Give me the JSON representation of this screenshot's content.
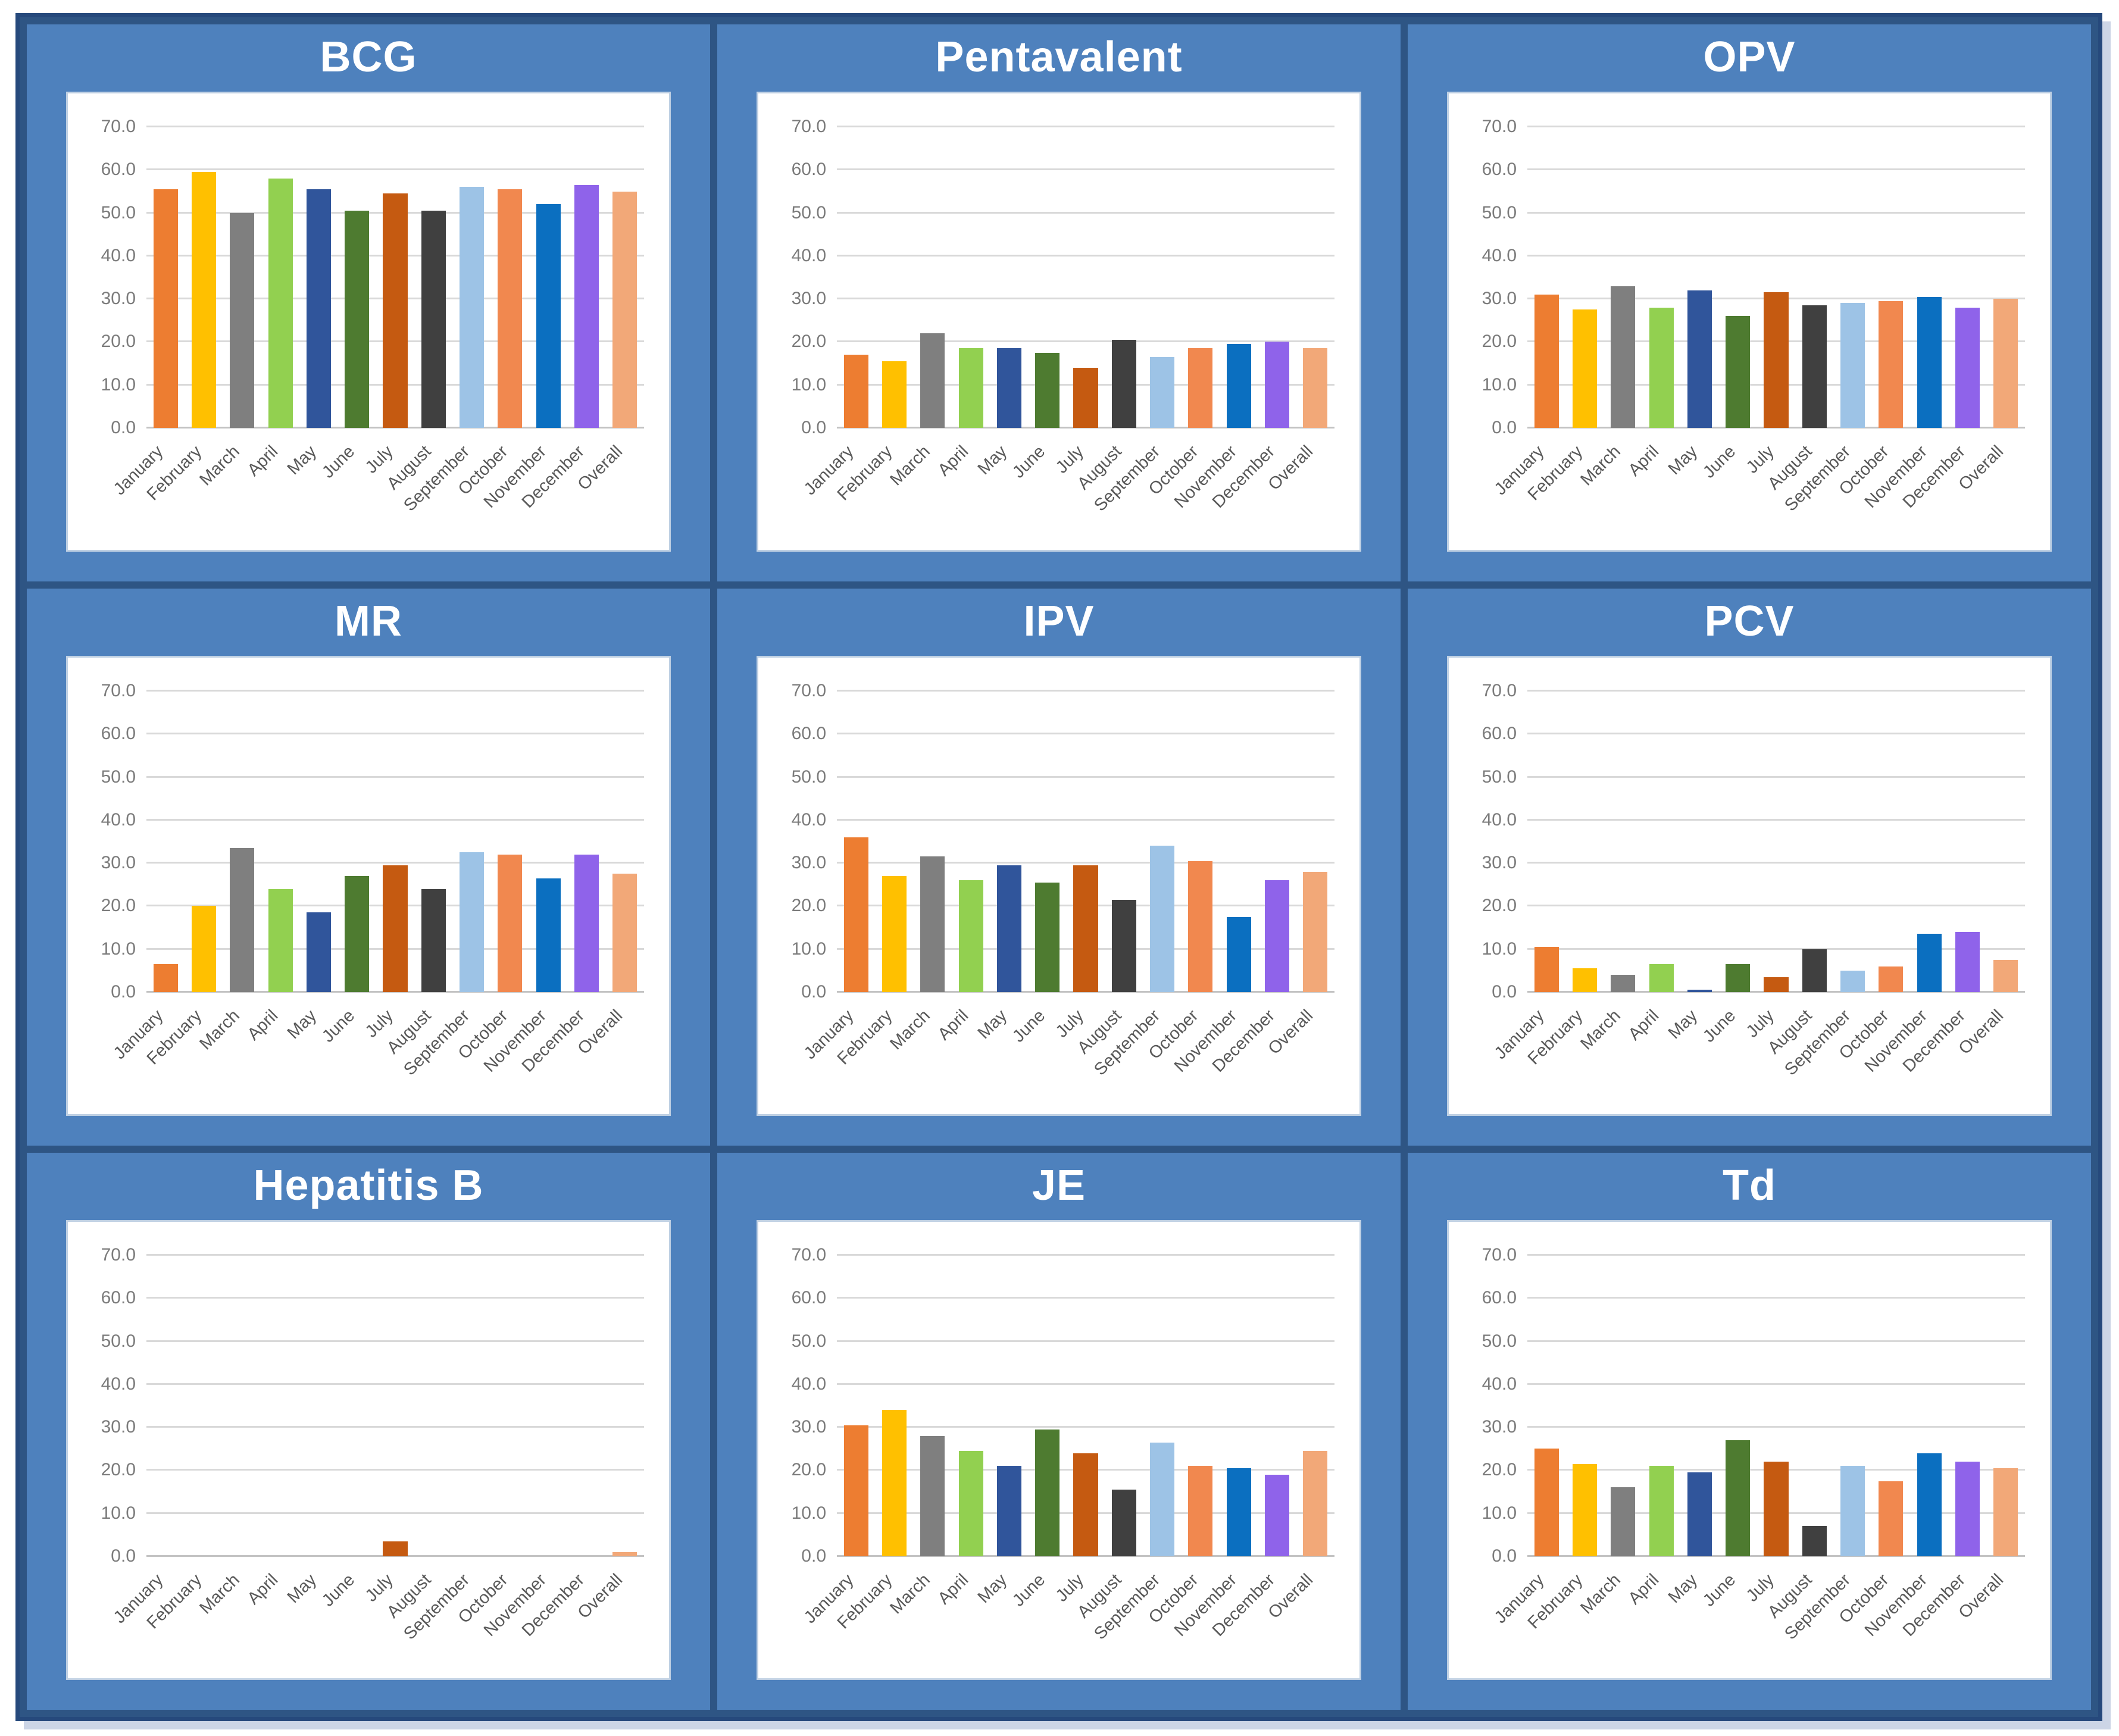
{
  "style": {
    "panel_blue": "#4e81bd",
    "frame_blue": "#2e5584",
    "frame_border": "#26497c",
    "card_border": "#bfd0e3",
    "gridline_color": "#d9d9d9",
    "axis_line_color": "#c3c3c3",
    "ytick_color": "#7b7b7b",
    "month_label_color": "#595959",
    "title_color": "#ffffff",
    "ytick_step": 10,
    "ytick_labels": [
      "0.0",
      "10.0",
      "20.0",
      "30.0",
      "40.0",
      "50.0",
      "60.0",
      "70.0"
    ],
    "bar_colors": [
      "#ED7D31",
      "#FFC000",
      "#7F7F7F",
      "#92D050",
      "#30559B",
      "#4E7B30",
      "#C55A11",
      "#404040",
      "#9DC3E6",
      "#F1884F",
      "#0B6FC0",
      "#8F63EA",
      "#F2A878"
    ]
  },
  "chart_data": [
    {
      "type": "bar",
      "title": "BCG",
      "ylim": [
        0,
        70
      ],
      "grid": true,
      "legend": "none",
      "categories": [
        "January",
        "February",
        "March",
        "April",
        "May",
        "June",
        "July",
        "August",
        "September",
        "October",
        "November",
        "December",
        "Overall"
      ],
      "values": [
        55.5,
        59.5,
        50.0,
        58.0,
        55.5,
        50.5,
        54.5,
        50.5,
        56.0,
        55.5,
        52.0,
        56.5,
        55.0
      ]
    },
    {
      "type": "bar",
      "title": "Pentavalent",
      "ylim": [
        0,
        70
      ],
      "grid": true,
      "legend": "none",
      "categories": [
        "January",
        "February",
        "March",
        "April",
        "May",
        "June",
        "July",
        "August",
        "September",
        "October",
        "November",
        "December",
        "Overall"
      ],
      "values": [
        17.0,
        15.5,
        22.0,
        18.5,
        18.5,
        17.5,
        14.0,
        20.5,
        16.5,
        18.5,
        19.5,
        20.0,
        18.5
      ]
    },
    {
      "type": "bar",
      "title": "OPV",
      "ylim": [
        0,
        70
      ],
      "grid": true,
      "legend": "none",
      "categories": [
        "January",
        "February",
        "March",
        "April",
        "May",
        "June",
        "July",
        "August",
        "September",
        "October",
        "November",
        "December",
        "Overall"
      ],
      "values": [
        31.0,
        27.5,
        33.0,
        28.0,
        32.0,
        26.0,
        31.5,
        28.5,
        29.0,
        29.5,
        30.5,
        28.0,
        30.0
      ]
    },
    {
      "type": "bar",
      "title": "MR",
      "ylim": [
        0,
        70
      ],
      "grid": true,
      "legend": "none",
      "categories": [
        "January",
        "February",
        "March",
        "April",
        "May",
        "June",
        "July",
        "August",
        "September",
        "October",
        "November",
        "December",
        "Overall"
      ],
      "values": [
        6.5,
        20.0,
        33.5,
        24.0,
        18.5,
        27.0,
        29.5,
        24.0,
        32.5,
        32.0,
        26.5,
        32.0,
        27.5
      ]
    },
    {
      "type": "bar",
      "title": "IPV",
      "ylim": [
        0,
        70
      ],
      "grid": true,
      "legend": "none",
      "categories": [
        "January",
        "February",
        "March",
        "April",
        "May",
        "June",
        "July",
        "August",
        "September",
        "October",
        "November",
        "December",
        "Overall"
      ],
      "values": [
        36.0,
        27.0,
        31.5,
        26.0,
        29.5,
        25.5,
        29.5,
        21.5,
        34.0,
        30.5,
        17.5,
        26.0,
        28.0
      ]
    },
    {
      "type": "bar",
      "title": "PCV",
      "ylim": [
        0,
        70
      ],
      "grid": true,
      "legend": "none",
      "categories": [
        "January",
        "February",
        "March",
        "April",
        "May",
        "June",
        "July",
        "August",
        "September",
        "October",
        "November",
        "December",
        "Overall"
      ],
      "values": [
        10.5,
        5.5,
        4.0,
        6.5,
        0.5,
        6.5,
        3.5,
        10.0,
        5.0,
        6.0,
        13.5,
        14.0,
        7.5
      ]
    },
    {
      "type": "bar",
      "title": "Hepatitis B",
      "ylim": [
        0,
        70
      ],
      "grid": true,
      "legend": "none",
      "categories": [
        "January",
        "February",
        "March",
        "April",
        "May",
        "June",
        "July",
        "August",
        "September",
        "October",
        "November",
        "December",
        "Overall"
      ],
      "values": [
        0,
        0,
        0,
        0,
        0,
        0,
        3.5,
        0,
        0,
        0,
        0,
        0,
        1.0
      ]
    },
    {
      "type": "bar",
      "title": "JE",
      "ylim": [
        0,
        70
      ],
      "grid": true,
      "legend": "none",
      "categories": [
        "January",
        "February",
        "March",
        "April",
        "May",
        "June",
        "July",
        "August",
        "September",
        "October",
        "November",
        "December",
        "Overall"
      ],
      "values": [
        30.5,
        34.0,
        28.0,
        24.5,
        21.0,
        29.5,
        24.0,
        15.5,
        26.5,
        21.0,
        20.5,
        19.0,
        24.5
      ]
    },
    {
      "type": "bar",
      "title": "Td",
      "ylim": [
        0,
        70
      ],
      "grid": true,
      "legend": "none",
      "categories": [
        "January",
        "February",
        "March",
        "April",
        "May",
        "June",
        "July",
        "August",
        "September",
        "October",
        "November",
        "December",
        "Overall"
      ],
      "values": [
        25.0,
        21.5,
        16.0,
        21.0,
        19.5,
        27.0,
        22.0,
        7.0,
        21.0,
        17.5,
        24.0,
        22.0,
        20.5
      ]
    }
  ]
}
